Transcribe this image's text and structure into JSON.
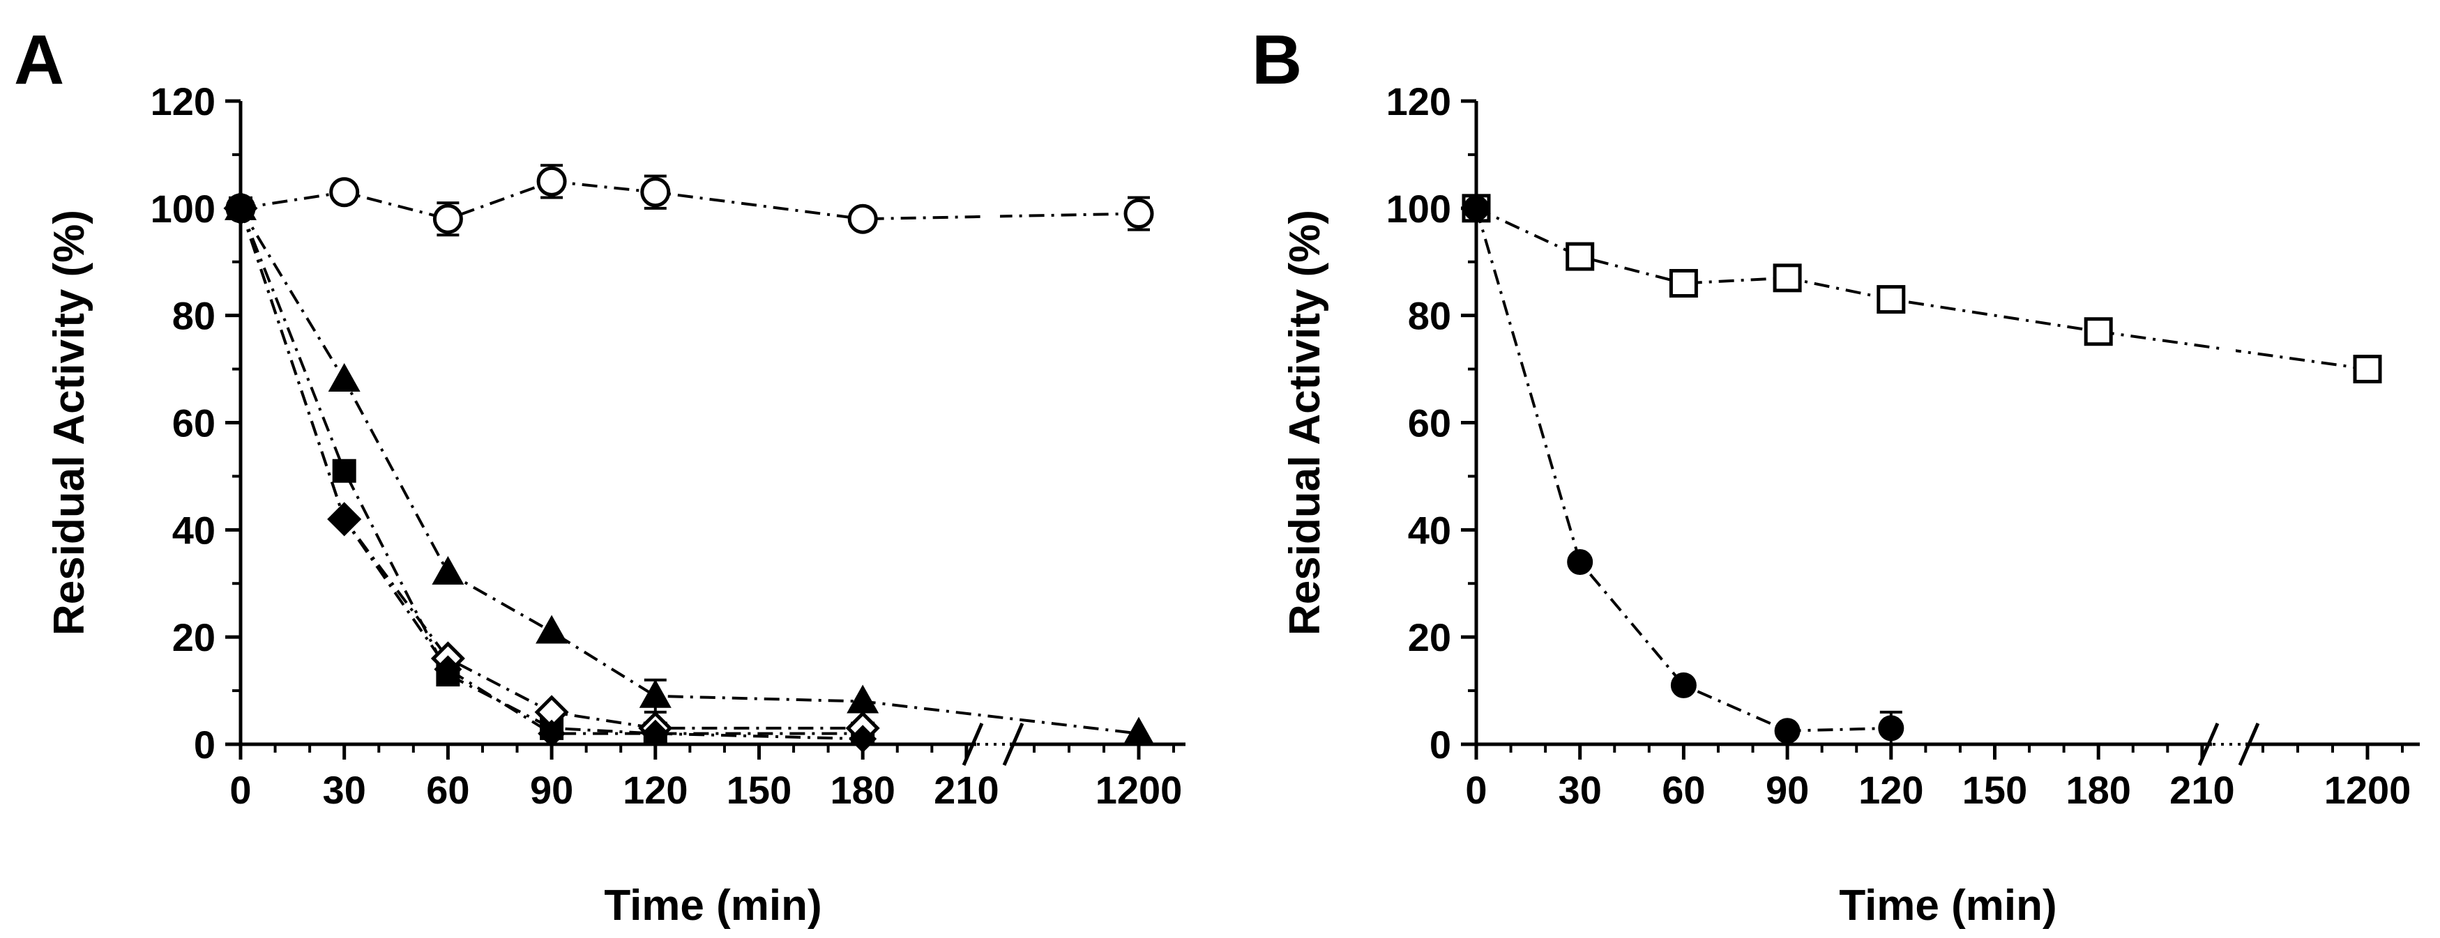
{
  "chart_data": [
    {
      "panel_label": "A",
      "type": "line",
      "xlabel": "Time (min)",
      "ylabel": "Residual Activity (%)",
      "ylim": [
        0,
        120
      ],
      "y_ticks": [
        "0",
        "20",
        "40",
        "60",
        "80",
        "100",
        "120"
      ],
      "x_ticks": [
        "0",
        "30",
        "60",
        "90",
        "120",
        "150",
        "180",
        "210",
        "1200"
      ],
      "x_axis_break": "between 210 and 1200",
      "grid": false,
      "series": [
        {
          "name": "open circle",
          "marker": "open-circle",
          "x": [
            0,
            30,
            60,
            90,
            120,
            180,
            1200
          ],
          "values": [
            100,
            103,
            98,
            105,
            103,
            98,
            99
          ],
          "errors": [
            0,
            0,
            3,
            3,
            3,
            0,
            3
          ]
        },
        {
          "name": "filled triangle",
          "marker": "filled-triangle",
          "x": [
            0,
            30,
            60,
            90,
            120,
            180,
            1200
          ],
          "values": [
            100,
            68,
            32,
            21,
            9,
            8,
            2
          ],
          "errors": [
            0,
            0,
            0,
            0,
            3,
            0,
            0
          ]
        },
        {
          "name": "filled square",
          "marker": "filled-square",
          "x": [
            0,
            30,
            60,
            90,
            120,
            180
          ],
          "values": [
            100,
            51,
            13,
            3,
            2,
            2
          ],
          "errors": [
            0,
            0,
            0,
            0,
            0,
            0
          ]
        },
        {
          "name": "open diamond",
          "marker": "open-diamond",
          "x": [
            0,
            30,
            60,
            90,
            120,
            180
          ],
          "values": [
            100,
            42,
            16,
            6,
            3,
            3
          ],
          "errors": [
            0,
            0,
            0,
            0,
            0,
            0
          ]
        },
        {
          "name": "filled diamond",
          "marker": "filled-diamond",
          "x": [
            0,
            30,
            60,
            90,
            120,
            180
          ],
          "values": [
            100,
            42,
            14,
            2,
            2,
            1
          ],
          "errors": [
            0,
            0,
            0,
            0,
            0,
            0
          ]
        }
      ]
    },
    {
      "panel_label": "B",
      "type": "line",
      "xlabel": "Time (min)",
      "ylabel": "Residual Activity (%)",
      "ylim": [
        0,
        120
      ],
      "y_ticks": [
        "0",
        "20",
        "40",
        "60",
        "80",
        "100",
        "120"
      ],
      "x_ticks": [
        "0",
        "30",
        "60",
        "90",
        "120",
        "150",
        "180",
        "210",
        "1200"
      ],
      "x_axis_break": "between 210 and 1200",
      "grid": false,
      "series": [
        {
          "name": "open square",
          "marker": "open-square",
          "x": [
            0,
            30,
            60,
            90,
            120,
            180,
            1200
          ],
          "values": [
            100,
            91,
            86,
            87,
            83,
            77,
            70
          ],
          "errors": [
            0,
            0,
            0,
            0,
            0,
            2,
            0
          ]
        },
        {
          "name": "filled circle",
          "marker": "filled-circle",
          "x": [
            0,
            30,
            60,
            90,
            120
          ],
          "values": [
            100,
            34,
            11,
            2.5,
            3
          ],
          "errors": [
            0,
            0,
            0,
            0,
            3
          ]
        }
      ]
    }
  ]
}
